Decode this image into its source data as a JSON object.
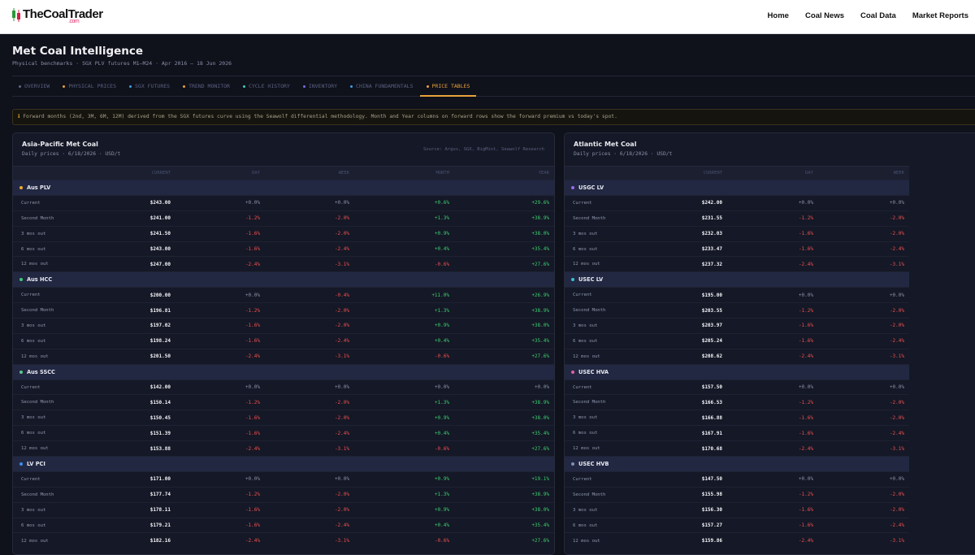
{
  "header": {
    "logo": "TheCoalTrader",
    "logo_suffix": ".com",
    "nav": [
      "Home",
      "Coal News",
      "Coal Data",
      "Market Reports"
    ]
  },
  "page": {
    "title": "Met Coal Intelligence",
    "subtitle": "Physical benchmarks · SGX PLV futures M1–M24 · Apr 2016 – 18 Jun 2026"
  },
  "tabs": {
    "items": [
      {
        "label": "OVERVIEW",
        "color": "#5a6a8a"
      },
      {
        "label": "PHYSICAL PRICES",
        "color": "#e8a23a"
      },
      {
        "label": "SGX FUTURES",
        "color": "#3aa0e8"
      },
      {
        "label": "TREND MONITOR",
        "color": "#e8a23a"
      },
      {
        "label": "CYCLE HISTORY",
        "color": "#3ad0c0"
      },
      {
        "label": "INVENTORY",
        "color": "#7a6ae8"
      },
      {
        "label": "CHINA FUNDAMENTALS",
        "color": "#3aa0e8"
      },
      {
        "label": "PRICE TABLES",
        "color": "#e8a23a"
      }
    ],
    "active": 7
  },
  "note": "Forward months (2nd, 3M, 6M, 12M) derived from the SGX futures curve using the Seawolf differential methodology. Month and Year columns on forward rows show the forward premium vs today's spot.",
  "panels": [
    {
      "title": "Asia-Pacific Met Coal",
      "subtitle": "Daily prices · 6/18/2026 · USD/t",
      "source": "Source: Argus, SGX, BigMint, Seawolf Research",
      "columns": [
        "CURRENT",
        "DAY",
        "WEEK",
        "MONTH",
        "YEAR"
      ],
      "groups": [
        {
          "name": "Aus PLV",
          "color": "#f0a830",
          "rows": [
            {
              "label": "Current",
              "cells": [
                "$243.00",
                "+0.0%",
                "+0.0%",
                "+0.6%",
                "+29.6%"
              ]
            },
            {
              "label": "Second Month",
              "cells": [
                "$241.00",
                "-1.2%",
                "-2.0%",
                "+1.3%",
                "+38.9%"
              ]
            },
            {
              "label": "3 mos out",
              "cells": [
                "$241.50",
                "-1.6%",
                "-2.0%",
                "+0.9%",
                "+38.0%"
              ]
            },
            {
              "label": "6 mos out",
              "cells": [
                "$243.00",
                "-1.6%",
                "-2.4%",
                "+0.4%",
                "+35.4%"
              ]
            },
            {
              "label": "12 mos out",
              "cells": [
                "$247.00",
                "-2.4%",
                "-3.1%",
                "-0.6%",
                "+27.6%"
              ]
            }
          ]
        },
        {
          "name": "Aus HCC",
          "color": "#3cc87a",
          "rows": [
            {
              "label": "Current",
              "cells": [
                "$200.00",
                "+0.0%",
                "-0.4%",
                "+11.0%",
                "+26.9%"
              ]
            },
            {
              "label": "Second Month",
              "cells": [
                "$196.81",
                "-1.2%",
                "-2.0%",
                "+1.3%",
                "+38.9%"
              ]
            },
            {
              "label": "3 mos out",
              "cells": [
                "$197.02",
                "-1.6%",
                "-2.0%",
                "+0.9%",
                "+38.0%"
              ]
            },
            {
              "label": "6 mos out",
              "cells": [
                "$198.24",
                "-1.6%",
                "-2.4%",
                "+0.4%",
                "+35.4%"
              ]
            },
            {
              "label": "12 mos out",
              "cells": [
                "$201.50",
                "-2.4%",
                "-3.1%",
                "-0.6%",
                "+27.6%"
              ]
            }
          ]
        },
        {
          "name": "Aus SSCC",
          "color": "#5ac890",
          "rows": [
            {
              "label": "Current",
              "cells": [
                "$142.00",
                "+0.0%",
                "+0.0%",
                "+0.0%",
                "+0.0%"
              ]
            },
            {
              "label": "Second Month",
              "cells": [
                "$150.14",
                "-1.2%",
                "-2.0%",
                "+1.3%",
                "+38.9%"
              ]
            },
            {
              "label": "3 mos out",
              "cells": [
                "$150.45",
                "-1.6%",
                "-2.0%",
                "+0.9%",
                "+38.0%"
              ]
            },
            {
              "label": "6 mos out",
              "cells": [
                "$151.39",
                "-1.6%",
                "-2.4%",
                "+0.4%",
                "+35.4%"
              ]
            },
            {
              "label": "12 mos out",
              "cells": [
                "$153.88",
                "-2.4%",
                "-3.1%",
                "-0.6%",
                "+27.6%"
              ]
            }
          ]
        },
        {
          "name": "LV PCI",
          "color": "#3a90f0",
          "rows": [
            {
              "label": "Current",
              "cells": [
                "$171.00",
                "+0.0%",
                "+0.0%",
                "+0.9%",
                "+19.1%"
              ]
            },
            {
              "label": "Second Month",
              "cells": [
                "$177.74",
                "-1.2%",
                "-2.0%",
                "+1.3%",
                "+38.9%"
              ]
            },
            {
              "label": "3 mos out",
              "cells": [
                "$178.11",
                "-1.6%",
                "-2.0%",
                "+0.9%",
                "+38.0%"
              ]
            },
            {
              "label": "6 mos out",
              "cells": [
                "$179.21",
                "-1.6%",
                "-2.4%",
                "+0.4%",
                "+35.4%"
              ]
            },
            {
              "label": "12 mos out",
              "cells": [
                "$182.16",
                "-2.4%",
                "-3.1%",
                "-0.6%",
                "+27.6%"
              ]
            }
          ]
        }
      ]
    },
    {
      "title": "Atlantic Met Coal",
      "subtitle": "Daily prices · 6/18/2026 · USD/t",
      "columns": [
        "CURRENT",
        "DAY",
        "WEEK"
      ],
      "groups": [
        {
          "name": "USGC LV",
          "color": "#9a6ae8",
          "rows": [
            {
              "label": "Current",
              "cells": [
                "$242.00",
                "+0.0%",
                "+0.0%"
              ]
            },
            {
              "label": "Second Month",
              "cells": [
                "$231.55",
                "-1.2%",
                "-2.0%"
              ]
            },
            {
              "label": "3 mos out",
              "cells": [
                "$232.03",
                "-1.6%",
                "-2.0%"
              ]
            },
            {
              "label": "6 mos out",
              "cells": [
                "$233.47",
                "-1.6%",
                "-2.4%"
              ]
            },
            {
              "label": "12 mos out",
              "cells": [
                "$237.32",
                "-2.4%",
                "-3.1%"
              ]
            }
          ]
        },
        {
          "name": "USEC LV",
          "color": "#3ac0d0",
          "rows": [
            {
              "label": "Current",
              "cells": [
                "$195.00",
                "+0.0%",
                "+0.0%"
              ]
            },
            {
              "label": "Second Month",
              "cells": [
                "$203.55",
                "-1.2%",
                "-2.0%"
              ]
            },
            {
              "label": "3 mos out",
              "cells": [
                "$203.97",
                "-1.6%",
                "-2.0%"
              ]
            },
            {
              "label": "6 mos out",
              "cells": [
                "$205.24",
                "-1.6%",
                "-2.4%"
              ]
            },
            {
              "label": "12 mos out",
              "cells": [
                "$208.62",
                "-2.4%",
                "-3.1%"
              ]
            }
          ]
        },
        {
          "name": "USEC HVA",
          "color": "#e060a0",
          "rows": [
            {
              "label": "Current",
              "cells": [
                "$157.50",
                "+0.0%",
                "+0.0%"
              ]
            },
            {
              "label": "Second Month",
              "cells": [
                "$166.53",
                "-1.2%",
                "-2.0%"
              ]
            },
            {
              "label": "3 mos out",
              "cells": [
                "$166.88",
                "-1.6%",
                "-2.0%"
              ]
            },
            {
              "label": "6 mos out",
              "cells": [
                "$167.91",
                "-1.6%",
                "-2.4%"
              ]
            },
            {
              "label": "12 mos out",
              "cells": [
                "$170.68",
                "-2.4%",
                "-3.1%"
              ]
            }
          ]
        },
        {
          "name": "USEC HVB",
          "color": "#8090b0",
          "rows": [
            {
              "label": "Current",
              "cells": [
                "$147.50",
                "+0.0%",
                "+0.0%"
              ]
            },
            {
              "label": "Second Month",
              "cells": [
                "$155.98",
                "-1.2%",
                "-2.0%"
              ]
            },
            {
              "label": "3 mos out",
              "cells": [
                "$156.30",
                "-1.6%",
                "-2.0%"
              ]
            },
            {
              "label": "6 mos out",
              "cells": [
                "$157.27",
                "-1.6%",
                "-2.4%"
              ]
            },
            {
              "label": "12 mos out",
              "cells": [
                "$159.86",
                "-2.4%",
                "-3.1%"
              ]
            }
          ]
        }
      ]
    }
  ]
}
